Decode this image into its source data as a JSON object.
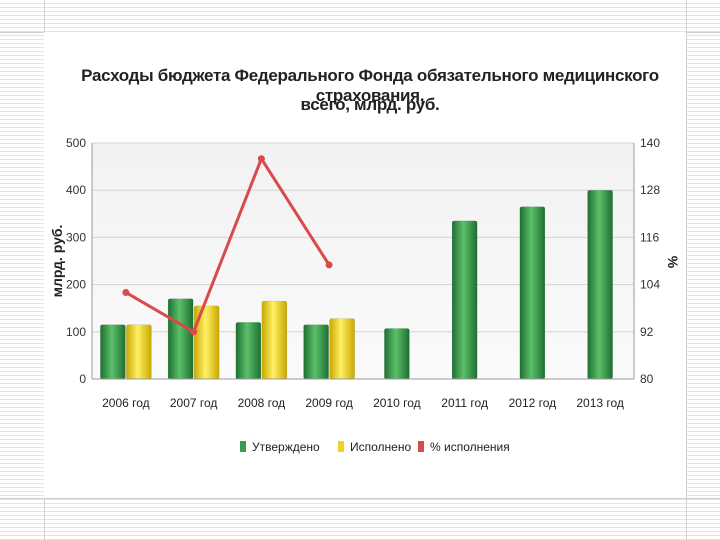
{
  "chart_data": {
    "type": "bar",
    "title_line1": "Расходы бюджета Федерального Фонда обязательного медицинского страхования,",
    "title_line2": "всего, млрд. руб.",
    "ylabel": "млрд. руб.",
    "y2label": "%",
    "ylim": [
      0,
      500
    ],
    "y2lim": [
      80,
      140
    ],
    "yticks": [
      "0",
      "100",
      "200",
      "300",
      "400",
      "500"
    ],
    "y2ticks": [
      "80",
      "92",
      "104",
      "116",
      "128",
      "140"
    ],
    "categories": [
      "2006 год",
      "2007 год",
      "2008 год",
      "2009 год",
      "2010 год",
      "2011 год",
      "2012 год",
      "2013 год"
    ],
    "series": [
      {
        "name": "Утверждено",
        "kind": "bar",
        "color": "#3a9a4e",
        "values": [
          115,
          170,
          120,
          115,
          107,
          335,
          365,
          400
        ]
      },
      {
        "name": "Исполнено",
        "kind": "bar",
        "color": "#f2d21e",
        "values": [
          115,
          155,
          165,
          128,
          null,
          null,
          null,
          null
        ]
      },
      {
        "name": "% исполнения",
        "kind": "line",
        "axis": "right",
        "color": "#d94a4a",
        "values": [
          102,
          92,
          136,
          109,
          null,
          null,
          null,
          null
        ]
      }
    ],
    "grid": true,
    "legend": "bottom"
  }
}
